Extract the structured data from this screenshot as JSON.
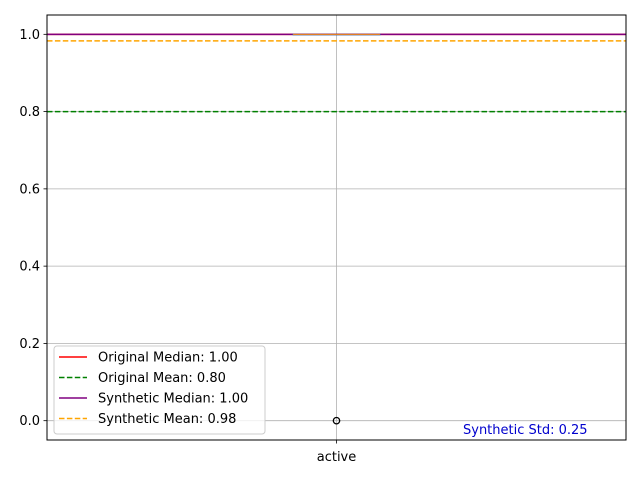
{
  "chart_data": {
    "type": "box",
    "categories": [
      "active"
    ],
    "boxplot": {
      "median": 1.0,
      "q1": 1.0,
      "q3": 1.0,
      "whisker_low": 1.0,
      "whisker_high": 1.0,
      "outliers": [
        0.0
      ]
    },
    "ylim": [
      -0.05,
      1.05
    ],
    "yticks": [
      0.0,
      0.2,
      0.4,
      0.6,
      0.8,
      1.0
    ],
    "ytick_labels": [
      "0.0",
      "0.2",
      "0.4",
      "0.6",
      "0.8",
      "1.0"
    ],
    "grid": true,
    "reference_lines": [
      {
        "name": "Original Median: 1.00",
        "value": 1.0,
        "color": "#ff0000",
        "style": "solid"
      },
      {
        "name": "Original Mean: 0.80",
        "value": 0.8,
        "color": "#008000",
        "style": "dashed"
      },
      {
        "name": "Synthetic Median: 1.00",
        "value": 1.0,
        "color": "#800080",
        "style": "solid"
      },
      {
        "name": "Synthetic Mean: 0.98",
        "value": 0.983,
        "color": "#ffa500",
        "style": "dashed"
      }
    ],
    "legend_position": "lower-left",
    "annotation": {
      "text": "Synthetic Std: 0.25",
      "color": "#0000cd"
    },
    "box_color": "#1f77b4",
    "median_color": "#ff7f0e"
  }
}
